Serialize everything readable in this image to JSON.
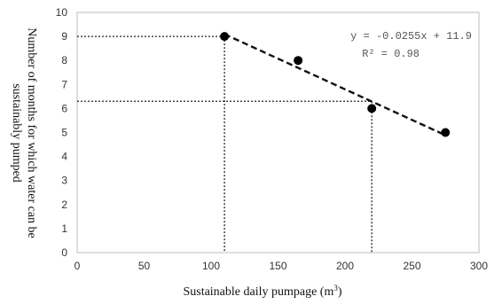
{
  "chart_data": {
    "type": "scatter",
    "xlabel": "Sustainable daily pumpage (m",
    "xlabel_unit_sup": "3",
    "xlabel_close": ")",
    "ylabel_line1": "Number of months for which water can be",
    "ylabel_line2": "sustainably pumped",
    "xlim": [
      0,
      300
    ],
    "ylim": [
      0,
      10
    ],
    "xticks": [
      0,
      50,
      100,
      150,
      200,
      250,
      300
    ],
    "yticks": [
      0,
      1,
      2,
      3,
      4,
      5,
      6,
      7,
      8,
      9,
      10
    ],
    "grid": false,
    "points": [
      {
        "x": 110,
        "y": 9
      },
      {
        "x": 165,
        "y": 8
      },
      {
        "x": 220,
        "y": 6
      },
      {
        "x": 275,
        "y": 5
      }
    ],
    "trendline": {
      "slope": -0.0255,
      "intercept": 11.9,
      "x_start": 110,
      "x_end": 275
    },
    "equation": "y = -0.0255x + 11.9",
    "r_squared": "R² = 0.98",
    "guides": [
      {
        "x": 110,
        "y": 9
      },
      {
        "x": 220,
        "y": 6.3
      }
    ]
  }
}
